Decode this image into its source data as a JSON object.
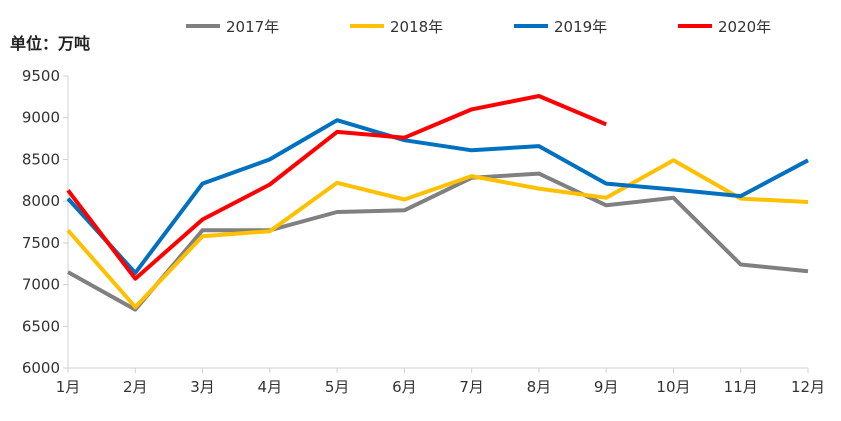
{
  "chart_data": {
    "type": "line",
    "title": "",
    "unit_label": "单位：万吨",
    "xlabel": "",
    "ylabel": "",
    "categories": [
      "1月",
      "2月",
      "3月",
      "4月",
      "5月",
      "6月",
      "7月",
      "8月",
      "9月",
      "10月",
      "11月",
      "12月"
    ],
    "ylim": [
      6000,
      9500
    ],
    "yticks": [
      6000,
      6500,
      7000,
      7500,
      8000,
      8500,
      9000,
      9500
    ],
    "grid": false,
    "legend_position": "top",
    "series": [
      {
        "name": "2017年",
        "color": "#808080",
        "values": [
          7150,
          6700,
          7650,
          7650,
          7870,
          7890,
          8280,
          8330,
          7950,
          8040,
          7240,
          7160
        ]
      },
      {
        "name": "2018年",
        "color": "#FFC000",
        "values": [
          7650,
          6730,
          7580,
          7640,
          8220,
          8020,
          8300,
          8150,
          8040,
          8490,
          8030,
          7990
        ]
      },
      {
        "name": "2019年",
        "color": "#0070C0",
        "values": [
          8030,
          7140,
          8210,
          8500,
          8970,
          8730,
          8610,
          8660,
          8210,
          8140,
          8060,
          8490
        ]
      },
      {
        "name": "2020年",
        "color": "#FF0000",
        "values": [
          8130,
          7070,
          7780,
          8200,
          8830,
          8760,
          9100,
          9260,
          8920,
          null,
          null,
          null
        ]
      }
    ]
  }
}
